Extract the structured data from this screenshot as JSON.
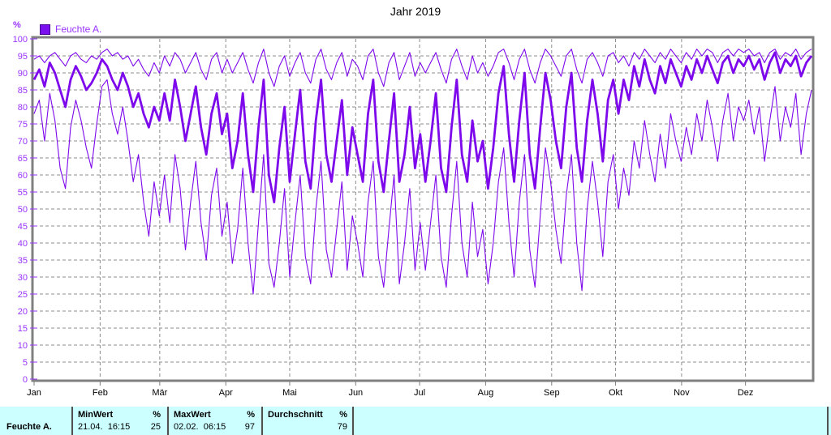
{
  "title": "Jahr 2019",
  "y_axis_unit": "%",
  "legend": {
    "label": "Feuchte A."
  },
  "colors": {
    "series": "#7D08EC",
    "legend_fill": "#7B10EE",
    "legend_border": "#470094",
    "axis_text": "#9933FF",
    "frame": "#808080",
    "grid": "#8C8C8C",
    "month_text": "#000000",
    "table_bg": "#CCFFFF"
  },
  "chart_data": {
    "type": "line",
    "title": "Jahr 2019",
    "ylabel": "%",
    "ylim": [
      0,
      100
    ],
    "ytick_step": 5,
    "grid": true,
    "legend_position": "top-left",
    "months": [
      "Jan",
      "Feb",
      "Mär",
      "Apr",
      "Mai",
      "Jun",
      "Jul",
      "Aug",
      "Sep",
      "Okt",
      "Nov",
      "Dez"
    ],
    "month_start_days": [
      0,
      31,
      59,
      90,
      120,
      151,
      181,
      212,
      243,
      273,
      304,
      334
    ],
    "days_in_year": 365,
    "series": [
      {
        "name": "daily-max",
        "style": "thin",
        "values": [
          94,
          95,
          93,
          95,
          96,
          94,
          92,
          95,
          96,
          94,
          93,
          95,
          94,
          96,
          97,
          95,
          96,
          94,
          95,
          92,
          94,
          91,
          89,
          93,
          90,
          95,
          92,
          96,
          94,
          90,
          93,
          96,
          91,
          88,
          94,
          96,
          90,
          94,
          90,
          93,
          96,
          91,
          87,
          93,
          97,
          90,
          86,
          92,
          95,
          89,
          93,
          96,
          90,
          87,
          94,
          97,
          91,
          88,
          93,
          96,
          89,
          94,
          92,
          88,
          95,
          97,
          90,
          86,
          93,
          96,
          88,
          92,
          96,
          89,
          93,
          90,
          93,
          96,
          91,
          87,
          94,
          97,
          92,
          88,
          95,
          90,
          93,
          89,
          92,
          96,
          97,
          93,
          88,
          94,
          97,
          91,
          87,
          93,
          97,
          95,
          92,
          89,
          95,
          97,
          91,
          87,
          94,
          96,
          93,
          89,
          95,
          96,
          93,
          95,
          92,
          96,
          94,
          97,
          95,
          93,
          96,
          94,
          97,
          95,
          93,
          96,
          94,
          97,
          95,
          97,
          96,
          93,
          96,
          97,
          95,
          97,
          96,
          97,
          95,
          96,
          93,
          96,
          97,
          94,
          96,
          95,
          97,
          94,
          96,
          97
        ]
      },
      {
        "name": "daily-average",
        "style": "thick",
        "values": [
          88,
          91,
          86,
          93,
          90,
          85,
          80,
          88,
          92,
          89,
          85,
          87,
          90,
          94,
          92,
          88,
          85,
          90,
          86,
          80,
          84,
          78,
          74,
          80,
          76,
          84,
          76,
          88,
          80,
          70,
          78,
          86,
          74,
          66,
          78,
          84,
          72,
          78,
          62,
          70,
          84,
          66,
          55,
          74,
          88,
          60,
          52,
          68,
          80,
          58,
          72,
          85,
          64,
          56,
          76,
          88,
          66,
          58,
          70,
          82,
          60,
          74,
          66,
          58,
          78,
          88,
          64,
          55,
          70,
          84,
          58,
          66,
          80,
          62,
          72,
          58,
          70,
          84,
          62,
          55,
          74,
          88,
          66,
          58,
          76,
          64,
          70,
          56,
          68,
          84,
          92,
          72,
          58,
          76,
          90,
          66,
          56,
          74,
          90,
          82,
          70,
          62,
          80,
          90,
          68,
          58,
          76,
          88,
          78,
          64,
          82,
          88,
          78,
          88,
          82,
          92,
          86,
          94,
          88,
          84,
          92,
          87,
          94,
          90,
          86,
          92,
          88,
          94,
          90,
          95,
          91,
          87,
          93,
          95,
          90,
          94,
          92,
          95,
          91,
          94,
          88,
          93,
          96,
          90,
          94,
          92,
          95,
          89,
          93,
          95
        ]
      },
      {
        "name": "daily-min",
        "style": "thin",
        "values": [
          78,
          82,
          70,
          84,
          76,
          62,
          56,
          74,
          82,
          76,
          68,
          62,
          75,
          86,
          88,
          78,
          72,
          80,
          70,
          58,
          66,
          52,
          42,
          58,
          48,
          60,
          46,
          66,
          56,
          38,
          52,
          64,
          46,
          35,
          54,
          62,
          42,
          52,
          34,
          44,
          62,
          40,
          25,
          46,
          66,
          34,
          27,
          40,
          56,
          30,
          46,
          60,
          36,
          28,
          50,
          64,
          38,
          30,
          44,
          58,
          32,
          48,
          40,
          30,
          52,
          64,
          36,
          27,
          44,
          60,
          28,
          40,
          56,
          32,
          46,
          32,
          46,
          60,
          36,
          27,
          48,
          64,
          40,
          30,
          52,
          36,
          44,
          28,
          40,
          58,
          68,
          46,
          30,
          52,
          66,
          38,
          27,
          48,
          68,
          58,
          44,
          34,
          54,
          66,
          40,
          26,
          50,
          64,
          52,
          36,
          58,
          66,
          50,
          62,
          54,
          70,
          62,
          76,
          66,
          58,
          72,
          62,
          78,
          70,
          64,
          74,
          66,
          78,
          70,
          82,
          74,
          64,
          76,
          84,
          70,
          80,
          76,
          82,
          72,
          80,
          64,
          76,
          86,
          70,
          80,
          74,
          84,
          66,
          78,
          85
        ]
      }
    ]
  },
  "summary_table": {
    "row_label": "Feuchte A.",
    "columns": [
      {
        "header": "MinWert",
        "unit": "%",
        "date": "21.04.  16:15",
        "value": "25"
      },
      {
        "header": "MaxWert",
        "unit": "%",
        "date": "02.02.  06:15",
        "value": "97"
      },
      {
        "header": "Durchschnitt",
        "unit": "%",
        "date": "",
        "value": "79"
      }
    ]
  }
}
